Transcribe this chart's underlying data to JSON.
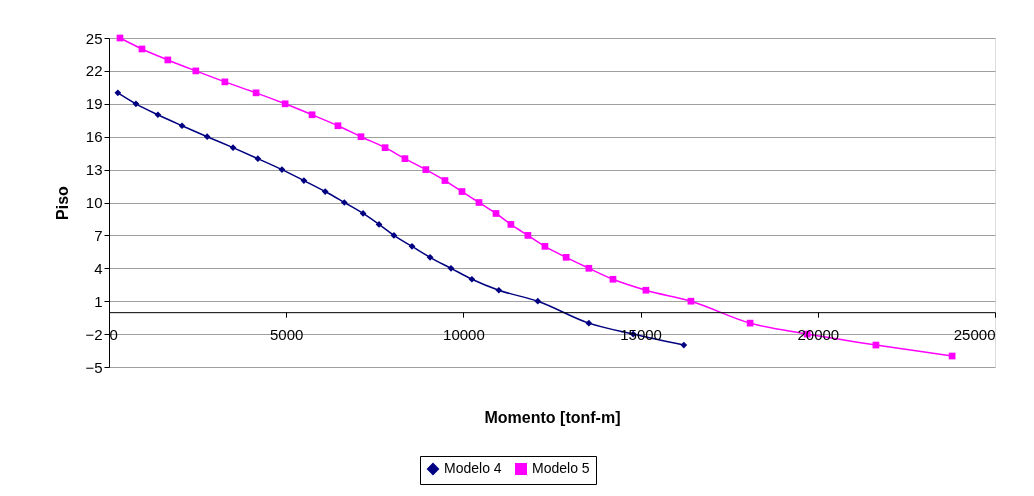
{
  "chart_data": {
    "type": "line",
    "xlabel": "Momento [tonf-m]",
    "ylabel": "Piso",
    "xlim": [
      0,
      25000
    ],
    "xticks": [
      0,
      5000,
      10000,
      15000,
      20000,
      25000
    ],
    "ylim": [
      -5,
      25
    ],
    "yticks": [
      -5,
      -2,
      1,
      4,
      7,
      10,
      13,
      16,
      19,
      22,
      25
    ],
    "grid": "y",
    "legend": "bottom",
    "series": [
      {
        "name": "Modelo 4",
        "color": "#000080",
        "marker": "diamond",
        "x": [
          250,
          760,
          1380,
          2060,
          2770,
          3500,
          4200,
          4880,
          5500,
          6100,
          6640,
          7170,
          7620,
          8040,
          8550,
          9060,
          9650,
          10240,
          11000,
          12100,
          13540,
          14790,
          16220
        ],
        "values": [
          20,
          19,
          18,
          17,
          16,
          15,
          14,
          13,
          12,
          11,
          10,
          9,
          8,
          7,
          6,
          5,
          4,
          3,
          2,
          1,
          -1,
          -2,
          -3
        ]
      },
      {
        "name": "Modelo 5",
        "color": "#ff00ff",
        "marker": "square",
        "x": [
          310,
          930,
          1660,
          2450,
          3270,
          4150,
          4970,
          5730,
          6460,
          7110,
          7790,
          8350,
          8940,
          9480,
          9960,
          10440,
          10920,
          11340,
          11820,
          12300,
          12900,
          13540,
          14220,
          15150,
          16420,
          18090,
          19700,
          21640,
          23790
        ],
        "values": [
          25,
          24,
          23,
          22,
          21,
          20,
          19,
          18,
          17,
          16,
          15,
          14,
          13,
          12,
          11,
          10,
          9,
          8,
          7,
          6,
          5,
          4,
          3,
          2,
          1,
          -1,
          -2,
          -3,
          -4
        ]
      }
    ]
  }
}
